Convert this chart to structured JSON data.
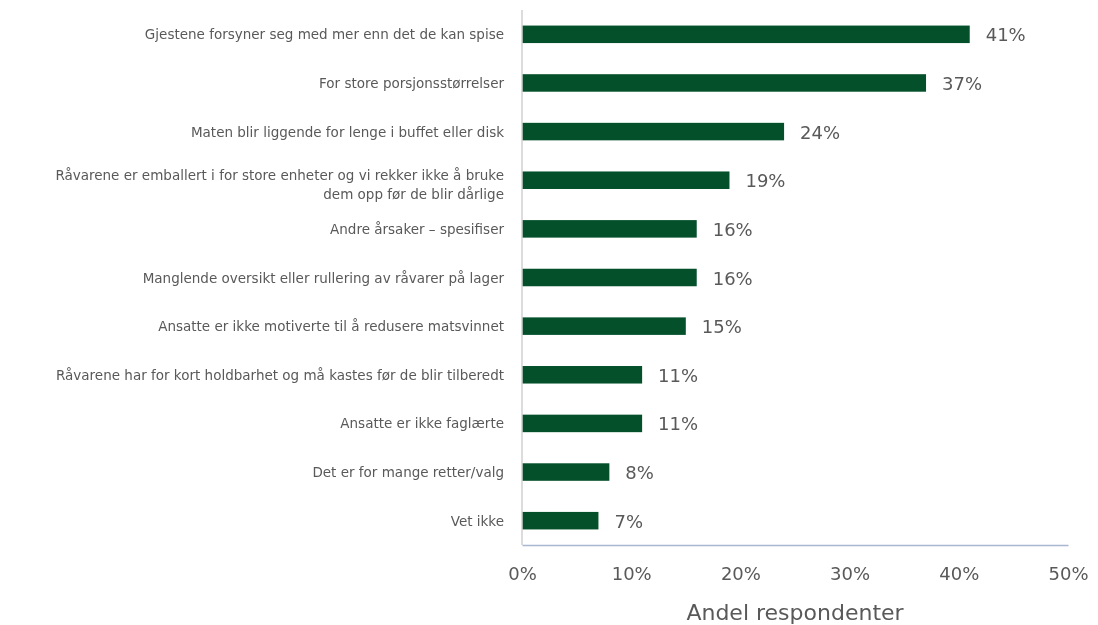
{
  "chart_data": {
    "type": "bar",
    "orientation": "horizontal",
    "xlabel": "Andel respondenter",
    "categories": [
      "Gjestene forsyner seg med mer enn det de kan spise",
      "For store porsjonsstørrelser",
      "Maten blir liggende for lenge i buffet eller disk",
      "Råvarene er emballert i for store enheter og vi rekker ikke å bruke dem opp før de blir dårlige",
      "Andre årsaker – spesifiser",
      "Manglende oversikt eller rullering av råvarer på lager",
      "Ansatte er ikke motiverte til å redusere matsvinnet",
      "Råvarene har for kort holdbarhet og må kastes før de blir tilberedt",
      "Ansatte er ikke faglærte",
      "Det er for mange retter/valg",
      "Vet ikke"
    ],
    "values": [
      41,
      37,
      24,
      19,
      16,
      16,
      15,
      11,
      11,
      8,
      7
    ],
    "value_labels": [
      "41%",
      "37%",
      "24%",
      "19%",
      "16%",
      "16%",
      "15%",
      "11%",
      "11%",
      "8%",
      "7%"
    ],
    "color": "#03502a",
    "xlim": [
      0,
      50
    ],
    "xticks": [
      {
        "value": 0,
        "label": "0%"
      },
      {
        "value": 10,
        "label": "10%"
      },
      {
        "value": 20,
        "label": "20%"
      },
      {
        "value": 30,
        "label": "30%"
      },
      {
        "value": 40,
        "label": "40%"
      },
      {
        "value": 50,
        "label": "50%"
      }
    ],
    "grid": false
  }
}
